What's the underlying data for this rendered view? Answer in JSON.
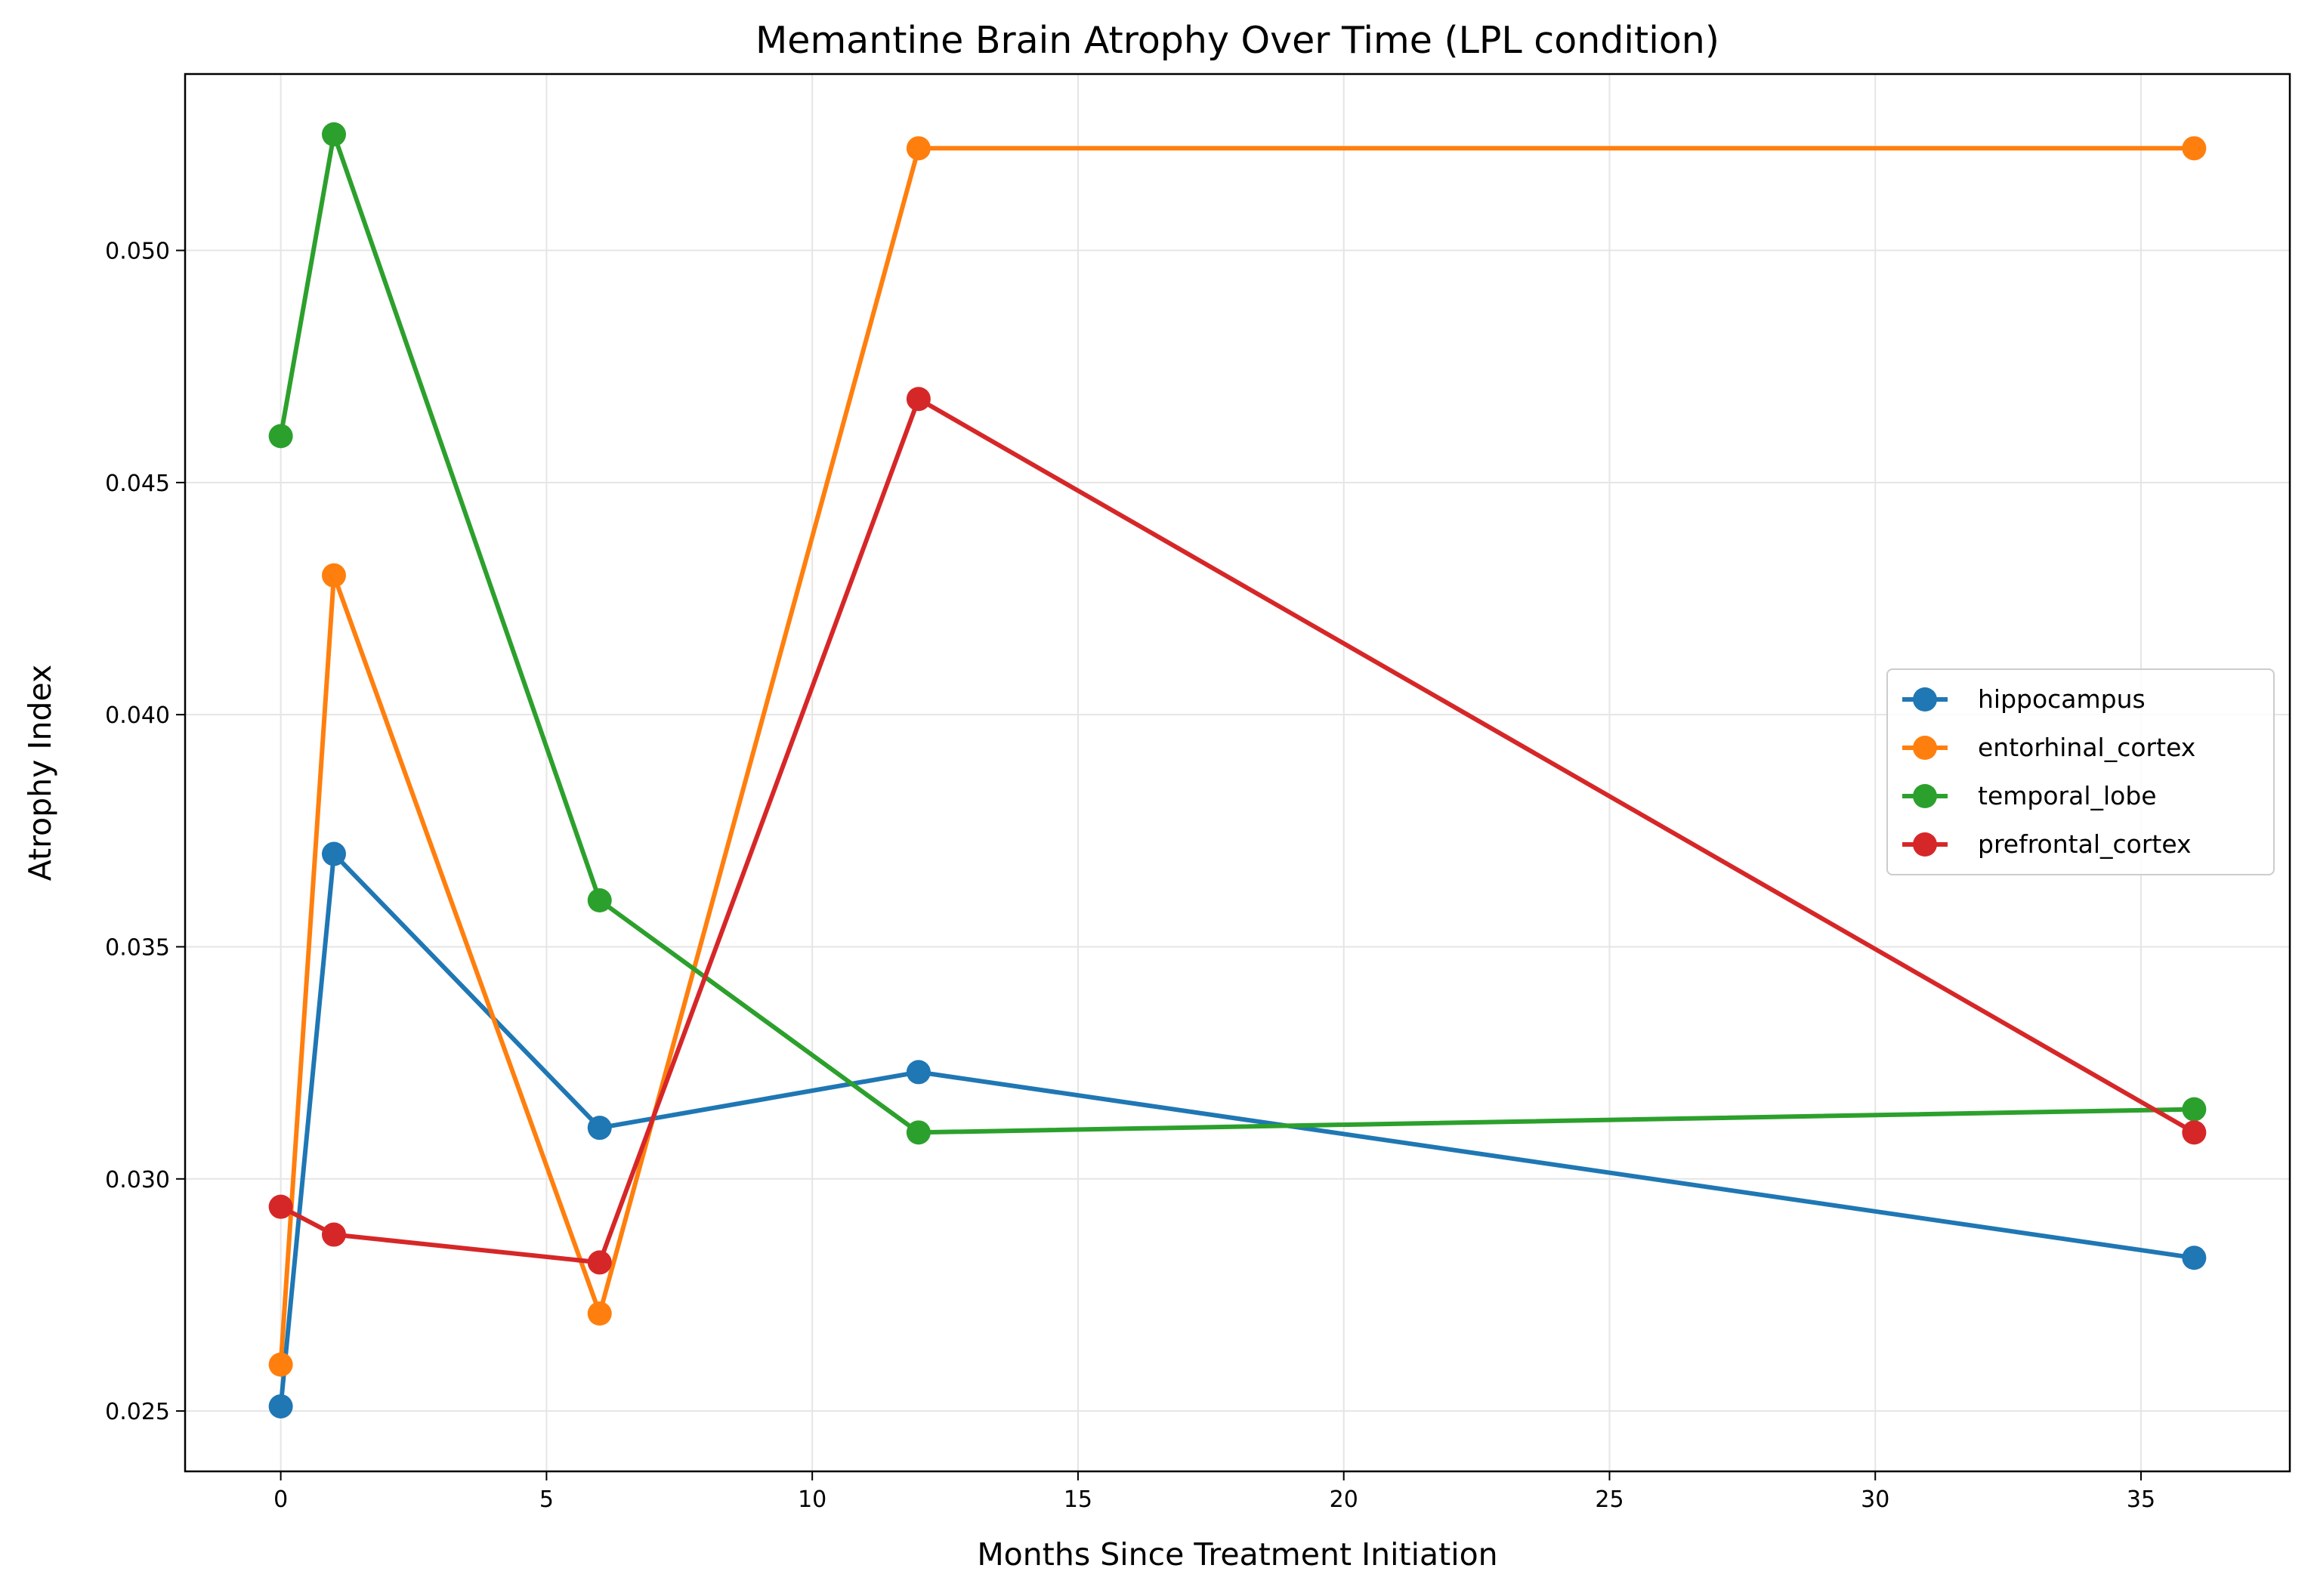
{
  "chart_data": {
    "type": "line",
    "title": "Memantine Brain Atrophy Over Time (LPL condition)",
    "xlabel": "Months Since Treatment Initiation",
    "ylabel": "Atrophy Index",
    "xlim": [
      -1.8,
      37.8
    ],
    "ylim": [
      0.0237,
      0.0538
    ],
    "x_ticks": [
      0,
      5,
      10,
      15,
      20,
      25,
      30,
      35
    ],
    "x_tick_labels": [
      "0",
      "5",
      "10",
      "15",
      "20",
      "25",
      "30",
      "35"
    ],
    "y_ticks": [
      0.025,
      0.03,
      0.035,
      0.04,
      0.045,
      0.05
    ],
    "y_tick_labels": [
      "0.025",
      "0.030",
      "0.035",
      "0.040",
      "0.045",
      "0.050"
    ],
    "grid": true,
    "legend_position": "center-right",
    "x": [
      0,
      1,
      6,
      12,
      36
    ],
    "series": [
      {
        "name": "hippocampus",
        "color": "#1f77b4",
        "values": [
          0.0251,
          0.037,
          0.0311,
          0.0323,
          0.0283
        ]
      },
      {
        "name": "entorhinal_cortex",
        "color": "#ff7f0e",
        "values": [
          0.026,
          0.043,
          0.0271,
          0.0522,
          0.0522
        ]
      },
      {
        "name": "temporal_lobe",
        "color": "#2ca02c",
        "values": [
          0.046,
          0.0525,
          0.036,
          0.031,
          0.0315
        ]
      },
      {
        "name": "prefrontal_cortex",
        "color": "#d62728",
        "values": [
          0.0294,
          0.0288,
          0.0282,
          0.0468,
          0.031
        ]
      }
    ]
  }
}
